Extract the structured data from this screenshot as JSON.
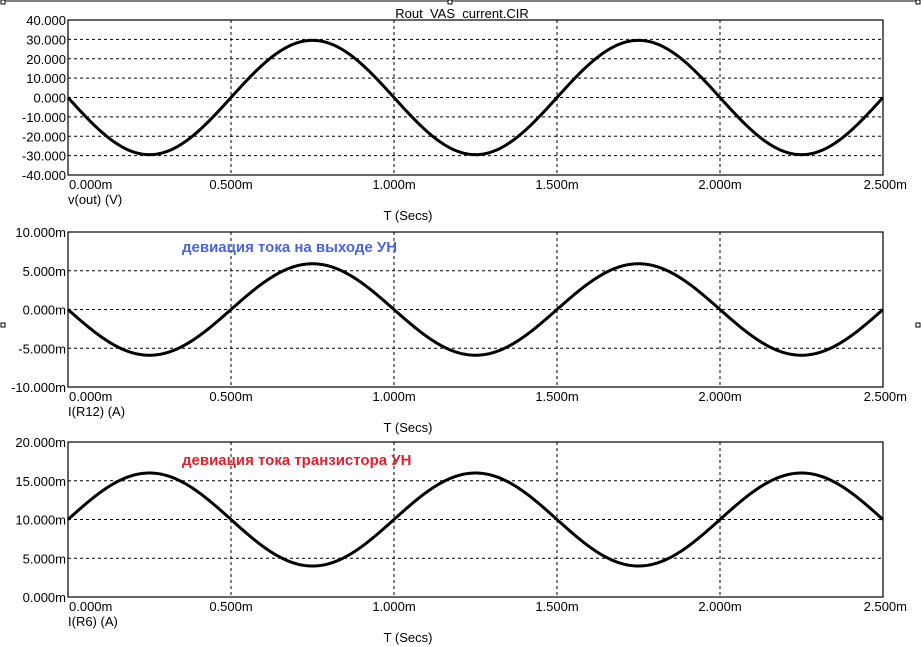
{
  "window": {
    "title": "Rout_VAS_current.CIR"
  },
  "chart_data": [
    {
      "type": "line",
      "title": "",
      "xlabel": "T (Secs)",
      "ylabel": "v(out) (V)",
      "annotation": "",
      "annotation_color": "",
      "xlim": [
        0,
        0.0025
      ],
      "ylim": [
        -40,
        40
      ],
      "x_ticks": [
        "0.000m",
        "0.500m",
        "1.000m",
        "1.500m",
        "2.000m",
        "2.500m"
      ],
      "y_ticks": [
        "40.000",
        "30.000",
        "20.000",
        "10.000",
        "0.000",
        "-10.000",
        "-20.000",
        "-30.000",
        "-40.000"
      ],
      "grid": true,
      "series": [
        {
          "waveform": "sine",
          "offset": 0,
          "amplitude": -29.5,
          "frequency_hz": 1000,
          "color": "#000000"
        }
      ]
    },
    {
      "type": "line",
      "title": "",
      "xlabel": "T (Secs)",
      "ylabel": "I(R12) (A)",
      "annotation": "девиация тока на выходе УН",
      "annotation_color": "#4a64e0",
      "xlim": [
        0,
        0.0025
      ],
      "ylim": [
        -0.01,
        0.01
      ],
      "x_ticks": [
        "0.000m",
        "0.500m",
        "1.000m",
        "1.500m",
        "2.000m",
        "2.500m"
      ],
      "y_ticks": [
        "10.000m",
        "5.000m",
        "0.000m",
        "-5.000m",
        "-10.000m"
      ],
      "grid": true,
      "series": [
        {
          "waveform": "sine",
          "offset": 0,
          "amplitude": -0.0059,
          "frequency_hz": 1000,
          "color": "#000000"
        }
      ]
    },
    {
      "type": "line",
      "title": "",
      "xlabel": "T (Secs)",
      "ylabel": "I(R6) (A)",
      "annotation": "девиация тока транзистора УН",
      "annotation_color": "#e0202e",
      "xlim": [
        0,
        0.0025
      ],
      "ylim": [
        0,
        0.02
      ],
      "x_ticks": [
        "0.000m",
        "0.500m",
        "1.000m",
        "1.500m",
        "2.000m",
        "2.500m"
      ],
      "y_ticks": [
        "20.000m",
        "15.000m",
        "10.000m",
        "5.000m",
        "0.000m"
      ],
      "grid": true,
      "series": [
        {
          "waveform": "sine",
          "offset": 0.01,
          "amplitude": 0.006,
          "frequency_hz": 1000,
          "color": "#000000"
        }
      ]
    }
  ]
}
